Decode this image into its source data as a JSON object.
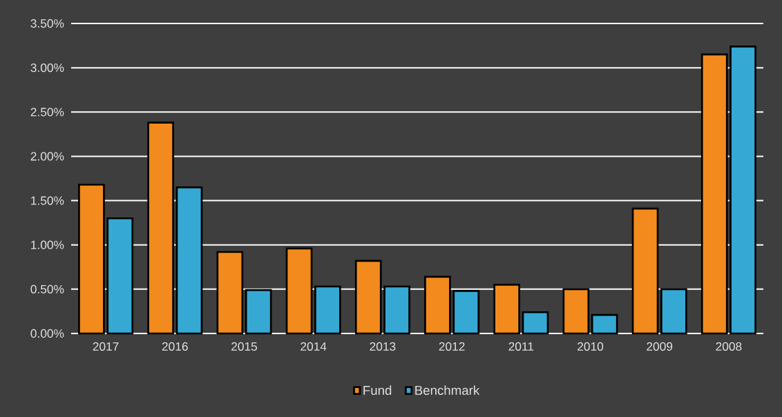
{
  "chart_data": {
    "type": "bar",
    "categories": [
      "2017",
      "2016",
      "2015",
      "2014",
      "2013",
      "2012",
      "2011",
      "2010",
      "2009",
      "2008"
    ],
    "series": [
      {
        "name": "Fund",
        "color": "#f28a1e",
        "values": [
          1.68,
          2.38,
          0.92,
          0.96,
          0.82,
          0.64,
          0.55,
          0.5,
          1.41,
          3.15
        ]
      },
      {
        "name": "Benchmark",
        "color": "#35a9d3",
        "values": [
          1.3,
          1.65,
          0.49,
          0.53,
          0.53,
          0.48,
          0.24,
          0.21,
          0.5,
          3.24
        ]
      }
    ],
    "ylim": [
      0,
      3.5
    ],
    "yticks": [
      {
        "value": 0,
        "label": "0.00%"
      },
      {
        "value": 0.5,
        "label": "0.50%"
      },
      {
        "value": 1,
        "label": "1.00%"
      },
      {
        "value": 1.5,
        "label": "1.50%"
      },
      {
        "value": 2,
        "label": "2.00%"
      },
      {
        "value": 2.5,
        "label": "2.50%"
      },
      {
        "value": 3,
        "label": "3.00%"
      },
      {
        "value": 3.5,
        "label": "3.50%"
      }
    ],
    "grid": "y",
    "legend": "bottom"
  }
}
